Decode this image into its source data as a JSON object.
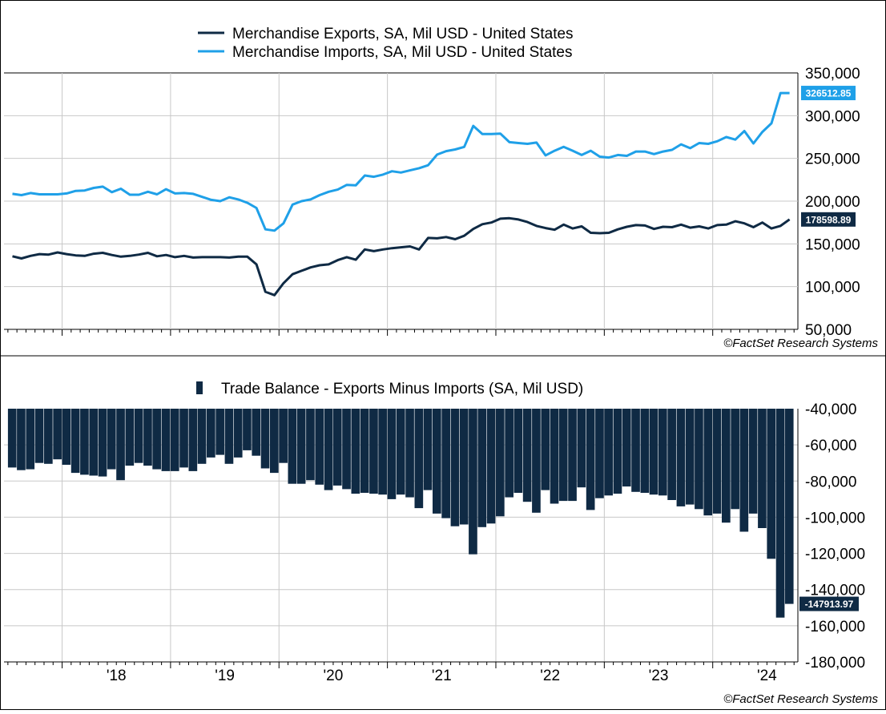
{
  "chart_data": [
    {
      "type": "line",
      "x_start": "2017-07",
      "x_step": "month",
      "series": [
        {
          "name": "Merchandise Exports, SA, Mil USD - United States",
          "color": "#0f2a44",
          "end_label": "178598.89",
          "values": [
            135500,
            133000,
            136000,
            138000,
            137500,
            140000,
            138000,
            136500,
            136000,
            138500,
            139500,
            137000,
            135000,
            136000,
            137500,
            139500,
            135500,
            137000,
            134500,
            136000,
            134000,
            134500,
            134500,
            134500,
            134000,
            135000,
            135000,
            126000,
            94000,
            90000,
            104000,
            114500,
            118500,
            122500,
            125000,
            126000,
            131000,
            134500,
            131500,
            143500,
            141500,
            143500,
            145000,
            146000,
            147000,
            143500,
            157000,
            156500,
            158000,
            155500,
            159500,
            167500,
            173000,
            175000,
            179500,
            180000,
            178500,
            175500,
            171000,
            168500,
            166500,
            172500,
            168000,
            170500,
            163000,
            162500,
            163000,
            167000,
            170000,
            172000,
            171500,
            167500,
            170000,
            169500,
            172500,
            169000,
            170500,
            168000,
            172000,
            172500,
            176500,
            174000,
            169500,
            175000,
            168000,
            171000,
            178598.89
          ]
        },
        {
          "name": "Merchandise Imports, SA, Mil USD - United States",
          "color": "#1fa0e8",
          "end_label": "326512.85",
          "values": [
            208500,
            207000,
            209500,
            208000,
            208000,
            208000,
            209000,
            212000,
            212500,
            215500,
            217000,
            210500,
            214500,
            207500,
            207500,
            211000,
            208000,
            214000,
            209000,
            209500,
            208500,
            205000,
            201500,
            200000,
            204500,
            202000,
            198000,
            192000,
            167000,
            165500,
            174000,
            196000,
            200000,
            202000,
            207000,
            211000,
            213500,
            219000,
            218500,
            230000,
            228500,
            231000,
            235000,
            233500,
            236000,
            238500,
            242000,
            254500,
            258500,
            260500,
            263500,
            288000,
            278500,
            278500,
            279000,
            269000,
            268000,
            267000,
            268500,
            253500,
            259000,
            263500,
            259000,
            254000,
            259000,
            252000,
            251000,
            254000,
            253000,
            258000,
            258000,
            255000,
            258000,
            260000,
            266500,
            262000,
            268000,
            267000,
            270000,
            275000,
            272000,
            282000,
            267500,
            281000,
            291000,
            326500,
            326512.85
          ]
        }
      ],
      "x_tick_labels": [
        "'18",
        "'19",
        "'20",
        "'21",
        "'22",
        "'23",
        "'24"
      ],
      "ylim": [
        50000,
        350000
      ],
      "y_tick_labels": [
        "50,000",
        "100,000",
        "150,000",
        "200,000",
        "250,000",
        "300,000",
        "350,000"
      ],
      "title": "",
      "xlabel": "",
      "ylabel": "",
      "grid": true,
      "legend_position": "top",
      "source_note": "©FactSet Research Systems"
    },
    {
      "type": "bar",
      "x_start": "2017-07",
      "x_step": "month",
      "baseline": -40000,
      "series": [
        {
          "name": "Trade Balance - Exports Minus Imports (SA, Mil USD)",
          "color": "#0f2a44",
          "end_label": "-147913.97",
          "values": [
            -72500,
            -74000,
            -73500,
            -70000,
            -70500,
            -68000,
            -71000,
            -75500,
            -76500,
            -77000,
            -77500,
            -73500,
            -79500,
            -71500,
            -70000,
            -71500,
            -73500,
            -74500,
            -74500,
            -72500,
            -74500,
            -70500,
            -67000,
            -65500,
            -70500,
            -67000,
            -63000,
            -66000,
            -73000,
            -75500,
            -70000,
            -81500,
            -81500,
            -79500,
            -82000,
            -85000,
            -82500,
            -84500,
            -87000,
            -86500,
            -87000,
            -87500,
            -90000,
            -87500,
            -89000,
            -95000,
            -85000,
            -98000,
            -100500,
            -105000,
            -104000,
            -120500,
            -105500,
            -103500,
            -99500,
            -89000,
            -86500,
            -91500,
            -97500,
            -85000,
            -92500,
            -91000,
            -91000,
            -83500,
            -96000,
            -89500,
            -88000,
            -87000,
            -83000,
            -86000,
            -86500,
            -87500,
            -88000,
            -90500,
            -94000,
            -93000,
            -95500,
            -99000,
            -98000,
            -103000,
            -95500,
            -108000,
            -98000,
            -106000,
            -123000,
            -155500,
            -147913.97
          ]
        }
      ],
      "x_tick_labels": [
        "'18",
        "'19",
        "'20",
        "'21",
        "'22",
        "'23",
        "'24"
      ],
      "ylim": [
        -180000,
        -40000
      ],
      "y_tick_labels": [
        "-180,000",
        "-160,000",
        "-140,000",
        "-120,000",
        "-100,000",
        "-80,000",
        "-60,000",
        "-40,000"
      ],
      "title": "",
      "xlabel": "",
      "ylabel": "",
      "grid": true,
      "legend_position": "top",
      "source_note": "©FactSet Research Systems"
    }
  ]
}
